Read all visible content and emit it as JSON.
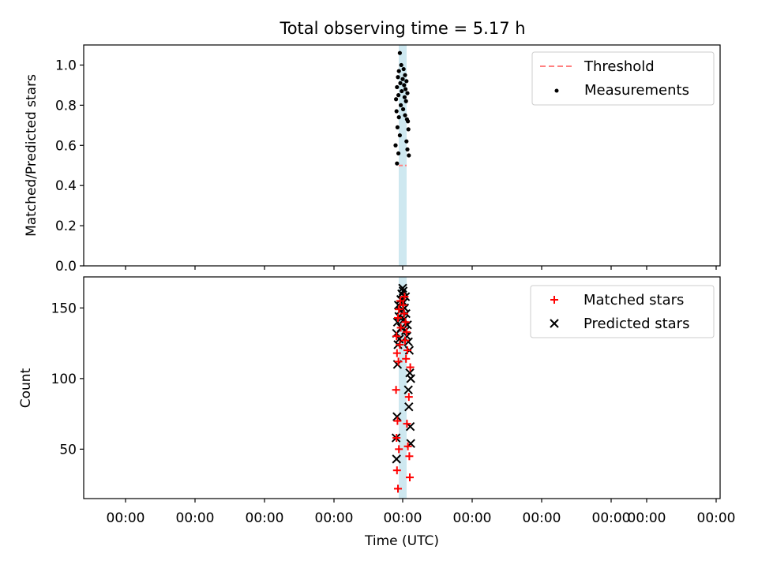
{
  "chart_data": {
    "type": "scatter",
    "title": "Total observing time = 5.17 h",
    "xlabel": "Time (UTC)",
    "x_tick_labels": [
      "00:00",
      "00:00",
      "00:00",
      "00:00",
      "00:00",
      "00:00",
      "00:00",
      "00:00",
      "00:00",
      "00:00"
    ],
    "observation_window_color": "#add8e6",
    "panels": [
      {
        "id": "ratio",
        "ylabel": "Matched/Predicted stars",
        "ylim": [
          0.0,
          1.1
        ],
        "yticks": [
          0.0,
          0.2,
          0.4,
          0.6,
          0.8,
          1.0
        ],
        "y_tick_labels": [
          "0.0",
          "0.2",
          "0.4",
          "0.6",
          "0.8",
          "1.0"
        ],
        "legend": {
          "placement": "top-right"
        },
        "threshold": {
          "name": "Threshold",
          "value": 0.5,
          "color": "#ff8080"
        },
        "series": [
          {
            "name": "Measurements",
            "color": "#000000",
            "marker": "dot",
            "points": [
              [
                -0.06,
                1.06
              ],
              [
                -0.03,
                1.0
              ],
              [
                0.02,
                0.98
              ],
              [
                -0.08,
                0.97
              ],
              [
                0.05,
                0.95
              ],
              [
                -0.1,
                0.94
              ],
              [
                0.0,
                0.93
              ],
              [
                0.08,
                0.92
              ],
              [
                -0.05,
                0.91
              ],
              [
                0.03,
                0.9
              ],
              [
                -0.12,
                0.89
              ],
              [
                0.06,
                0.88
              ],
              [
                -0.02,
                0.87
              ],
              [
                0.1,
                0.86
              ],
              [
                -0.09,
                0.85
              ],
              [
                0.04,
                0.84
              ],
              [
                -0.14,
                0.83
              ],
              [
                0.07,
                0.82
              ],
              [
                -0.04,
                0.8
              ],
              [
                0.01,
                0.78
              ],
              [
                -0.13,
                0.77
              ],
              [
                0.05,
                0.75
              ],
              [
                -0.08,
                0.74
              ],
              [
                0.09,
                0.73
              ],
              [
                0.11,
                0.72
              ],
              [
                -0.11,
                0.69
              ],
              [
                0.12,
                0.68
              ],
              [
                -0.06,
                0.65
              ],
              [
                0.08,
                0.62
              ],
              [
                -0.15,
                0.6
              ],
              [
                0.1,
                0.58
              ],
              [
                -0.09,
                0.56
              ],
              [
                0.13,
                0.55
              ],
              [
                -0.12,
                0.51
              ]
            ]
          }
        ]
      },
      {
        "id": "counts",
        "ylabel": "Count",
        "ylim": [
          15,
          172
        ],
        "yticks": [
          50,
          100,
          150
        ],
        "y_tick_labels": [
          "50",
          "100",
          "150"
        ],
        "legend": {
          "placement": "top-right"
        },
        "series": [
          {
            "name": "Matched stars",
            "color": "#ff0000",
            "marker": "plus",
            "points": [
              [
                -0.1,
                22
              ],
              [
                0.15,
                30
              ],
              [
                -0.12,
                35
              ],
              [
                0.14,
                45
              ],
              [
                -0.08,
                50
              ],
              [
                0.11,
                52
              ],
              [
                -0.13,
                58
              ],
              [
                0.09,
                68
              ],
              [
                -0.11,
                70
              ],
              [
                0.13,
                87
              ],
              [
                -0.14,
                92
              ],
              [
                0.16,
                108
              ],
              [
                -0.09,
                112
              ],
              [
                0.07,
                114
              ],
              [
                -0.12,
                118
              ],
              [
                0.1,
                120
              ],
              [
                -0.06,
                124
              ],
              [
                0.05,
                127
              ],
              [
                -0.13,
                130
              ],
              [
                0.08,
                133
              ],
              [
                -0.04,
                136
              ],
              [
                0.06,
                140
              ],
              [
                -0.1,
                143
              ],
              [
                0.03,
                146
              ],
              [
                -0.08,
                149
              ],
              [
                0.01,
                152
              ],
              [
                -0.05,
                155
              ],
              [
                0.04,
                158
              ]
            ]
          },
          {
            "name": "Predicted stars",
            "color": "#000000",
            "marker": "cross",
            "points": [
              [
                -0.13,
                43
              ],
              [
                0.17,
                54
              ],
              [
                -0.14,
                58
              ],
              [
                0.16,
                66
              ],
              [
                -0.12,
                73
              ],
              [
                0.13,
                80
              ],
              [
                0.12,
                92
              ],
              [
                0.17,
                100
              ],
              [
                0.15,
                104
              ],
              [
                -0.11,
                110
              ],
              [
                0.14,
                120
              ],
              [
                -0.1,
                124
              ],
              [
                0.12,
                126
              ],
              [
                -0.07,
                128
              ],
              [
                0.09,
                130
              ],
              [
                -0.13,
                132
              ],
              [
                0.06,
                134
              ],
              [
                -0.03,
                136
              ],
              [
                0.1,
                138
              ],
              [
                -0.11,
                140
              ],
              [
                0.03,
                142
              ],
              [
                -0.08,
                144
              ],
              [
                0.07,
                146
              ],
              [
                -0.05,
                148
              ],
              [
                0.04,
                150
              ],
              [
                -0.09,
                152
              ],
              [
                0.02,
                154
              ],
              [
                -0.04,
                156
              ],
              [
                0.06,
                158
              ],
              [
                -0.02,
                160
              ],
              [
                0.01,
                162
              ],
              [
                0.0,
                164
              ]
            ]
          }
        ]
      }
    ]
  }
}
